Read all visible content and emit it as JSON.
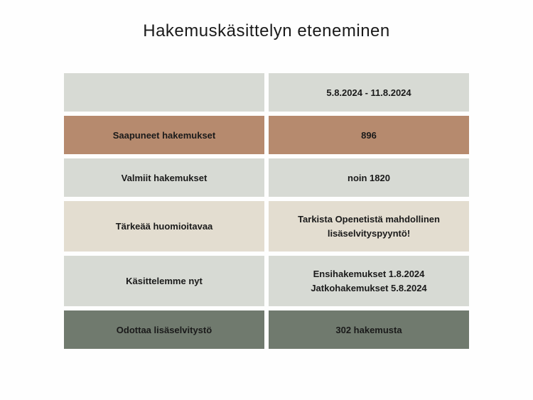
{
  "title": "Hakemuskäsittelyn eteneminen",
  "rows": [
    {
      "label": "",
      "value": "5.8.2024 - 11.8.2024",
      "label_bg": "gray",
      "value_bg": "gray"
    },
    {
      "label": "Saapuneet hakemukset",
      "value": "896",
      "label_bg": "brown",
      "value_bg": "brown"
    },
    {
      "label": "Valmiit hakemukset",
      "value": "noin 1820",
      "label_bg": "gray",
      "value_bg": "gray"
    },
    {
      "label": "Tärkeää huomioitavaa",
      "value": "Tarkista Openetistä mahdollinen lisäselvityspyyntö!",
      "label_bg": "beige",
      "value_bg": "beige"
    },
    {
      "label": "Käsittelemme nyt",
      "value": "Ensihakemukset  1.8.2024\nJatkohakemukset 5.8.2024",
      "label_bg": "gray",
      "value_bg": "gray"
    },
    {
      "label": "Odottaa lisäselvitystö",
      "value": "302 hakemusta",
      "label_bg": "darkgreen",
      "value_bg": "darkgreen"
    }
  ],
  "colors": {
    "gray": "#d7dad4",
    "brown": "#b68a6e",
    "beige": "#e3ddd0",
    "darkgreen": "#707a6e",
    "background": "#fefefe",
    "text": "#1a1a1a"
  }
}
